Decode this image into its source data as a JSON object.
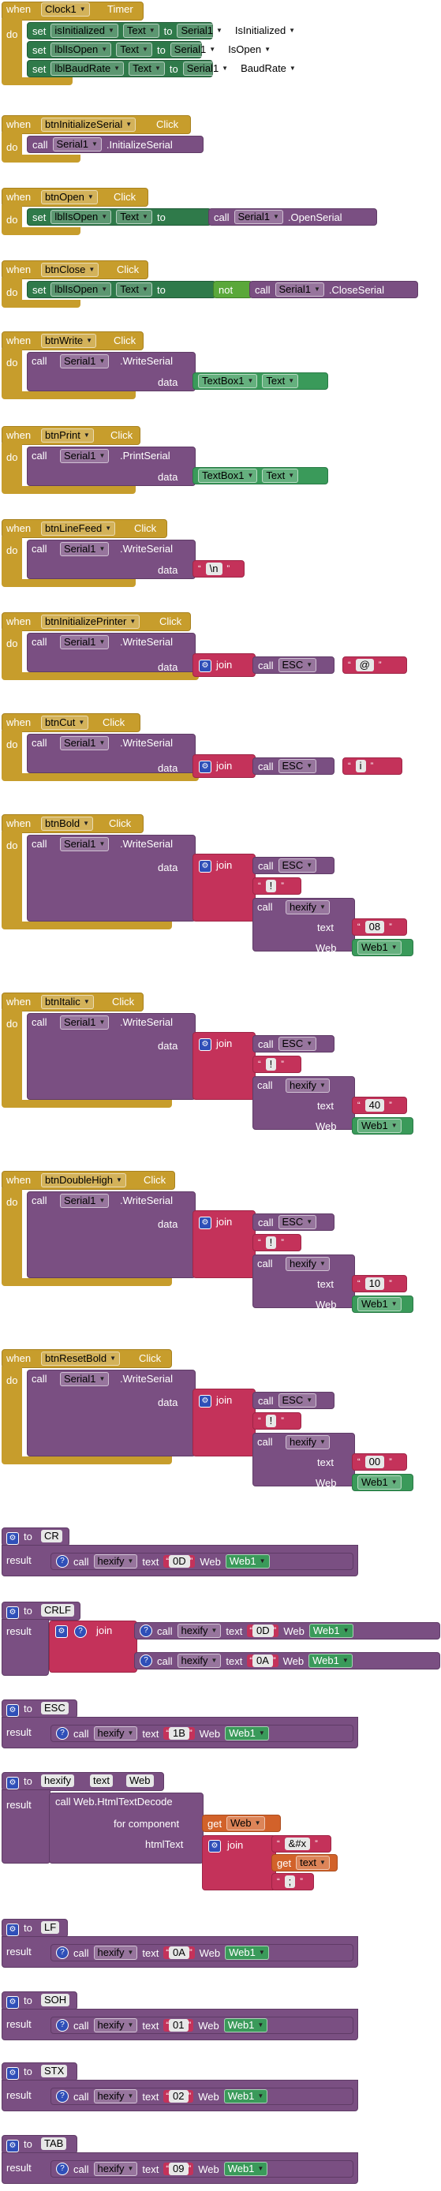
{
  "kw": {
    "when": "when",
    "do": "do",
    "set": "set",
    "to": "to",
    "call": "call",
    "data": "data",
    "join": "join",
    "not": "not",
    "result": "result",
    "text": "text",
    "web": "Web",
    "for_component": "for component",
    "html_text": "htmlText",
    "get": "get"
  },
  "timer": {
    "component": "Clock1",
    "event": "Timer",
    "rows": [
      {
        "var": "isInitialized",
        "prop": "Text",
        "comp": "Serial1",
        "rprop": "IsInitialized"
      },
      {
        "var": "lblIsOpen",
        "prop": "Text",
        "comp": "Serial1",
        "rprop": "IsOpen"
      },
      {
        "var": "lblBaudRate",
        "prop": "Text",
        "comp": "Serial1",
        "rprop": "BaudRate"
      }
    ]
  },
  "init": {
    "component": "btnInitializeSerial",
    "event": "Click",
    "comp": "Serial1",
    "method": "InitializeSerial"
  },
  "open": {
    "component": "btnOpen",
    "event": "Click",
    "var": "lblIsOpen",
    "prop": "Text",
    "comp": "Serial1",
    "method": "OpenSerial"
  },
  "close": {
    "component": "btnClose",
    "event": "Click",
    "var": "lblIsOpen",
    "prop": "Text",
    "comp": "Serial1",
    "method": "CloseSerial"
  },
  "write": {
    "component": "btnWrite",
    "event": "Click",
    "comp": "Serial1",
    "method": "WriteSerial",
    "arg_comp": "TextBox1",
    "arg_prop": "Text"
  },
  "print": {
    "component": "btnPrint",
    "event": "Click",
    "comp": "Serial1",
    "method": "PrintSerial",
    "arg_comp": "TextBox1",
    "arg_prop": "Text"
  },
  "linefeed": {
    "component": "btnLineFeed",
    "event": "Click",
    "comp": "Serial1",
    "method": "WriteSerial",
    "literal": "\\n"
  },
  "initprinter": {
    "component": "btnInitializePrinter",
    "event": "Click",
    "comp": "Serial1",
    "method": "WriteSerial",
    "proc": "ESC",
    "literal": "@"
  },
  "cut": {
    "component": "btnCut",
    "event": "Click",
    "comp": "Serial1",
    "method": "WriteSerial",
    "proc": "ESC",
    "literal": "i"
  },
  "bold": {
    "component": "btnBold",
    "event": "Click",
    "comp": "Serial1",
    "method": "WriteSerial",
    "proc": "ESC",
    "literal": "!",
    "hexproc": "hexify",
    "hexval": "08",
    "web": "Web1"
  },
  "italic": {
    "component": "btnItalic",
    "event": "Click",
    "comp": "Serial1",
    "method": "WriteSerial",
    "proc": "ESC",
    "literal": "!",
    "hexproc": "hexify",
    "hexval": "40",
    "web": "Web1"
  },
  "doublehigh": {
    "component": "btnDoubleHigh",
    "event": "Click",
    "comp": "Serial1",
    "method": "WriteSerial",
    "proc": "ESC",
    "literal": "!",
    "hexproc": "hexify",
    "hexval": "10",
    "web": "Web1"
  },
  "resetbold": {
    "component": "btnResetBold",
    "event": "Click",
    "comp": "Serial1",
    "method": "WriteSerial",
    "proc": "ESC",
    "literal": "!",
    "hexproc": "hexify",
    "hexval": "00",
    "web": "Web1"
  },
  "cr": {
    "name": "CR",
    "proc": "hexify",
    "hexval": "0D",
    "web": "Web1"
  },
  "crlf": {
    "name": "CRLF",
    "proc": "hexify",
    "hexval1": "0D",
    "hexval2": "0A",
    "web": "Web1"
  },
  "esc": {
    "name": "ESC",
    "proc": "hexify",
    "hexval": "1B",
    "web": "Web1"
  },
  "hexify": {
    "name": "hexify",
    "param1": "text",
    "param2": "Web",
    "method": "call Web.HtmlTextDecode",
    "get_web": "Web",
    "prefix": "&#x",
    "get_text": "text",
    "suffix": ";"
  },
  "lf": {
    "name": "LF",
    "proc": "hexify",
    "hexval": "0A",
    "web": "Web1"
  },
  "soh": {
    "name": "SOH",
    "proc": "hexify",
    "hexval": "01",
    "web": "Web1"
  },
  "stx": {
    "name": "STX",
    "proc": "hexify",
    "hexval": "02",
    "web": "Web1"
  },
  "tab": {
    "name": "TAB",
    "proc": "hexify",
    "hexval": "09",
    "web": "Web1"
  },
  "icons": {
    "dropdown": "chevron-down-icon",
    "mutator": "gear-icon",
    "help": "question-icon"
  },
  "colors": {
    "event": "#c79d2c",
    "procedure": "#7a4f82",
    "text": "#c4325a",
    "setter": "#2f7a4a",
    "getter": "#3a9a5a",
    "logic": "#5aa83a",
    "variable": "#d2622a",
    "mutator": "#2f4fb8"
  }
}
